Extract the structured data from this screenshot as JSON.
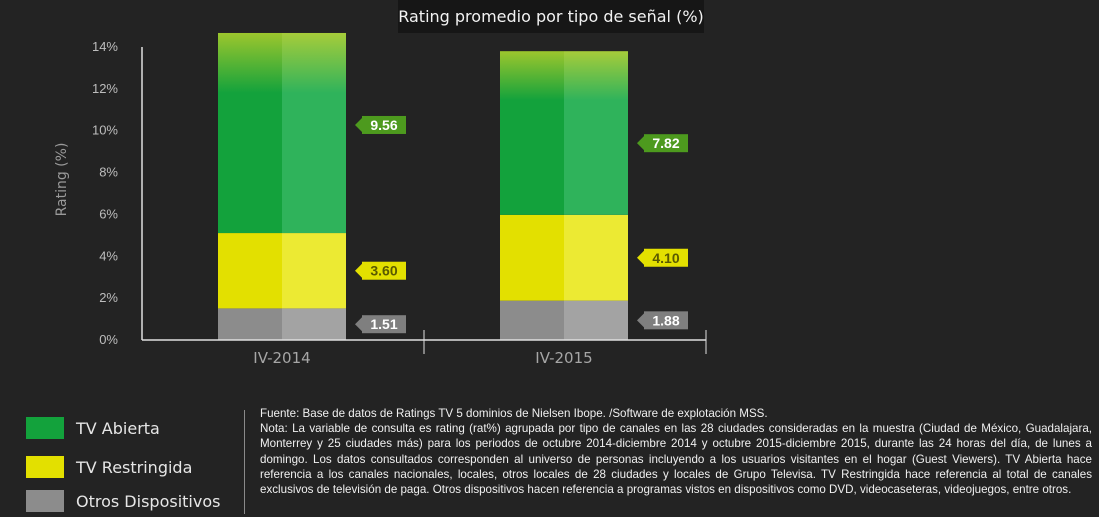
{
  "title": "Rating promedio por tipo de señal (%)",
  "chart_data": {
    "type": "bar",
    "stacked": true,
    "categories": [
      "IV-2014",
      "IV-2015"
    ],
    "series": [
      {
        "name": "Otros Dispositivos",
        "values": [
          1.51,
          1.88
        ],
        "color": "#8c8c8c",
        "label_bg": "#7f7f7f",
        "label_color": "#ffffff"
      },
      {
        "name": "TV Restringida",
        "values": [
          3.6,
          4.1
        ],
        "color": "#e3e000",
        "label_bg": "#e3e000",
        "label_color": "#5a5a00"
      },
      {
        "name": "TV Abierta",
        "values": [
          9.56,
          7.82
        ],
        "color": "#13a23c",
        "label_bg": "#4d9a1e",
        "label_color": "#ffffff"
      }
    ],
    "data_labels": [
      [
        "1.51",
        "3.60",
        "9.56"
      ],
      [
        "1.88",
        "4.10",
        "7.82"
      ]
    ],
    "ylabel": "Rating (%)",
    "ylim": [
      0,
      14
    ],
    "yticks": [
      "0%",
      "2%",
      "4%",
      "6%",
      "8%",
      "10%",
      "12%",
      "14%"
    ],
    "grid": false
  },
  "legend": [
    {
      "label": "TV Abierta",
      "color": "#13a23c"
    },
    {
      "label": "TV Restringida",
      "color": "#e3e000"
    },
    {
      "label": "Otros Dispositivos",
      "color": "#8c8c8c"
    }
  ],
  "notes": {
    "source": "Fuente: Base de datos de Ratings TV 5 dominios de Nielsen Ibope. /Software de explotación MSS.",
    "note": "Nota: La variable de consulta es rating (rat%) agrupada por tipo de canales en las 28 ciudades consideradas en la muestra (Ciudad de México, Guadalajara, Monterrey y 25 ciudades más) para los periodos de octubre 2014-diciembre 2014 y octubre 2015-diciembre 2015, durante las 24 horas del día, de lunes a domingo. Los datos consultados corresponden al universo de personas incluyendo a los usuarios visitantes en el hogar (Guest Viewers). TV Abierta hace referencia a los canales nacionales, locales, otros locales de 28 ciudades y locales de Grupo Televisa. TV Restringida hace referencia al total de canales exclusivos de televisión de paga. Otros dispositivos hacen referencia a programas vistos en dispositivos como DVD, videocaseteras, videojuegos, entre otros."
  }
}
